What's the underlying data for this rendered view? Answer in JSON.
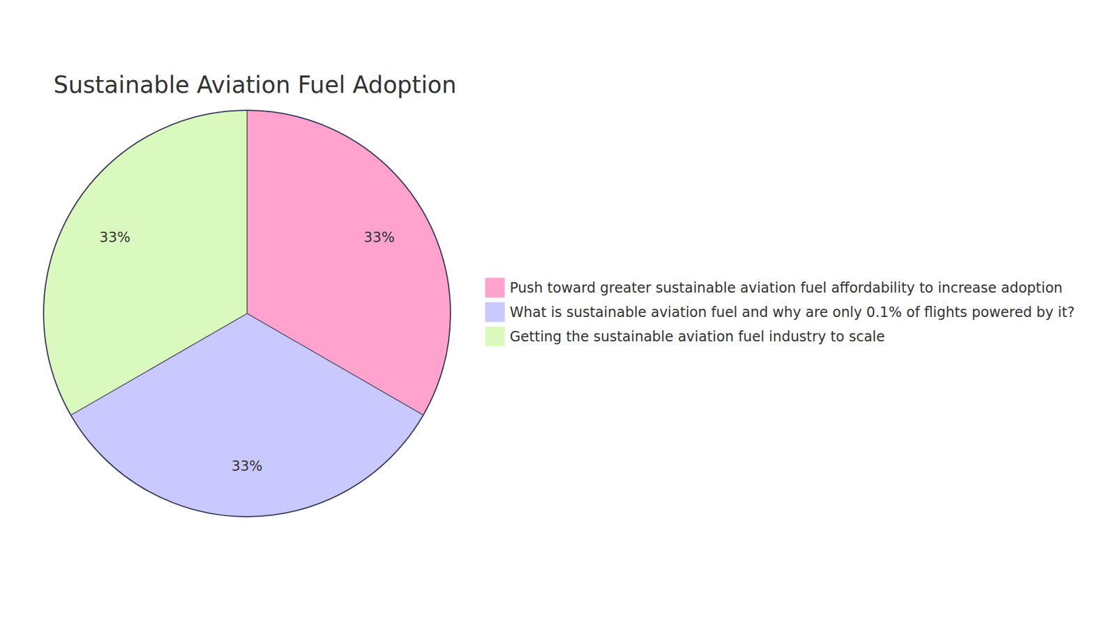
{
  "chart_data": {
    "type": "pie",
    "title": "Sustainable Aviation Fuel Adoption",
    "categories": [
      "Push toward greater sustainable aviation fuel affordability to increase adoption",
      "What is sustainable aviation fuel and why are only 0.1% of flights powered by it?",
      "Getting the sustainable aviation fuel industry to scale"
    ],
    "values": [
      33,
      33,
      33
    ],
    "value_labels": [
      "33%",
      "33%",
      "33%"
    ],
    "colors": [
      "#ffa3ce",
      "#c9c9ff",
      "#daf9be"
    ],
    "data_labels": true,
    "legend": "right"
  }
}
